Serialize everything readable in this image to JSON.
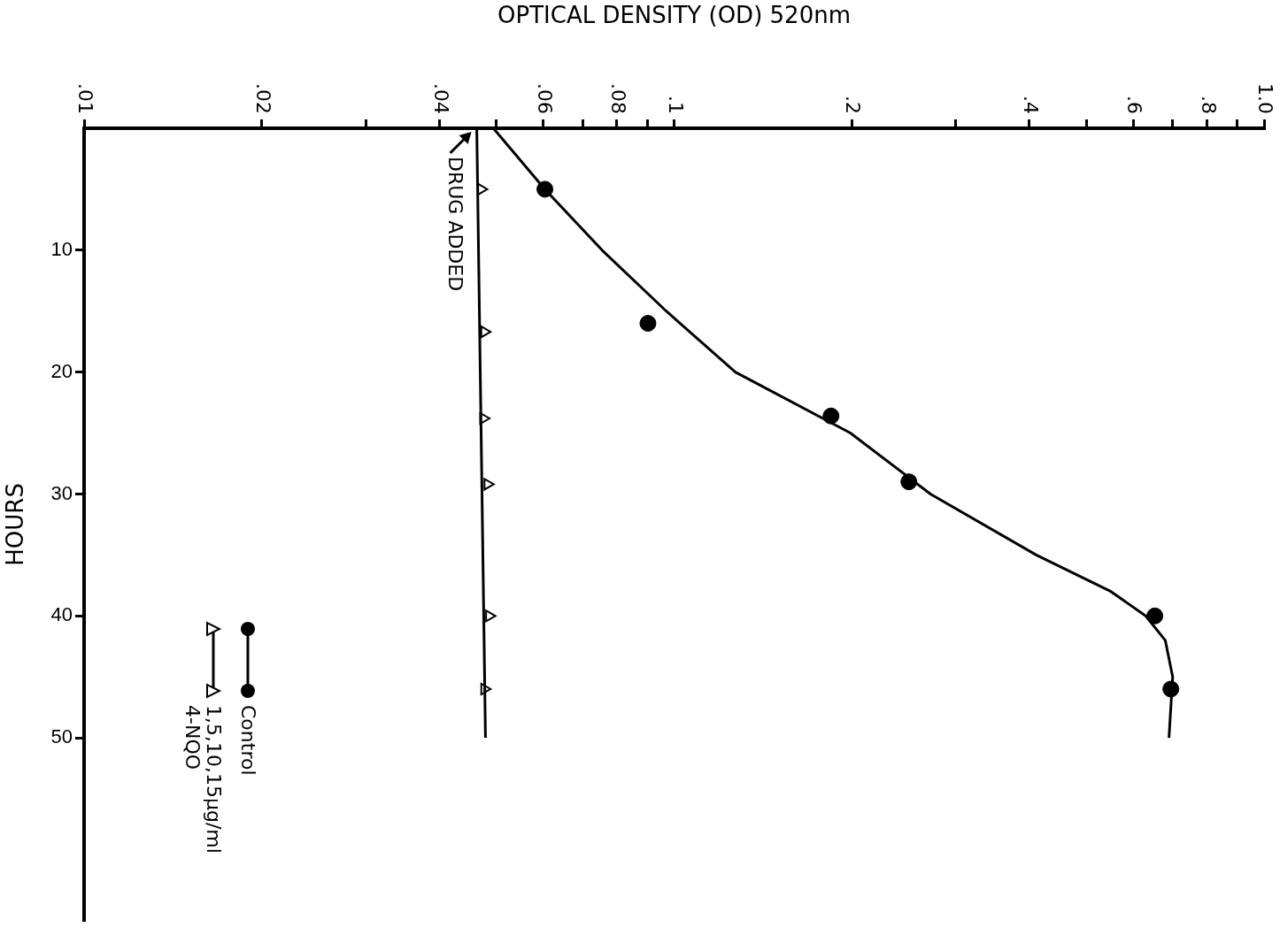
{
  "chart_data": {
    "type": "scatter",
    "xlabel": "OPTICAL DENSITY (OD) 520nm",
    "ylabel": "HOURS",
    "log": "x",
    "xlim": [
      0.01,
      1.0
    ],
    "xticks": [
      {
        "value": 0.01,
        "label": ".01"
      },
      {
        "value": 0.02,
        "label": ".02"
      },
      {
        "value": 0.03,
        "label": null
      },
      {
        "value": 0.04,
        "label": ".04"
      },
      {
        "value": 0.05,
        "label": null
      },
      {
        "value": 0.06,
        "label": ".06"
      },
      {
        "value": 0.07,
        "label": null
      },
      {
        "value": 0.08,
        "label": ".08"
      },
      {
        "value": 0.09,
        "label": null
      },
      {
        "value": 0.1,
        "label": ".1"
      },
      {
        "value": 0.2,
        "label": ".2"
      },
      {
        "value": 0.3,
        "label": null
      },
      {
        "value": 0.4,
        "label": ".4"
      },
      {
        "value": 0.5,
        "label": null
      },
      {
        "value": 0.6,
        "label": ".6"
      },
      {
        "value": 0.7,
        "label": null
      },
      {
        "value": 0.8,
        "label": ".8"
      },
      {
        "value": 0.9,
        "label": null
      },
      {
        "value": 1.0,
        "label": "1.0"
      }
    ],
    "ylim": [
      65,
      0
    ],
    "yticks": [
      10,
      20,
      30,
      40,
      50
    ],
    "legend": "bottom left",
    "series": [
      {
        "name": "Control",
        "type": "scatter",
        "marker": "circle",
        "color": "#000000",
        "x": [
          0.0604,
          0.0903,
          0.1845,
          0.25,
          0.653,
          0.695
        ],
        "values": [
          5,
          16,
          23.6,
          29,
          40,
          46
        ]
      },
      {
        "type": "line",
        "marker": "none",
        "color": "#000000",
        "x": [
          0.0494,
          0.0604,
          0.0755,
          0.097,
          0.127,
          0.199,
          0.272,
          0.411,
          0.55,
          0.63,
          0.68,
          0.7,
          0.69
        ],
        "values": [
          0,
          5,
          10,
          15,
          20,
          25,
          30,
          35,
          38,
          40,
          42,
          45,
          50
        ]
      },
      {
        "name": "1,5,10,15µg/ml 4-NQO",
        "type": "scatter",
        "marker": "triangle",
        "color": "#000000",
        "x": [
          0.0471,
          0.0477,
          0.0475,
          0.0483,
          0.0486,
          0.0477
        ],
        "values": [
          5,
          16.7,
          23.8,
          29.2,
          40,
          46
        ]
      },
      {
        "type": "line",
        "marker": "none",
        "color": "#000000",
        "x": [
          0.0463,
          0.0479
        ],
        "values": [
          0,
          50
        ]
      }
    ],
    "annotations": [
      {
        "text": "DRUG ADDED",
        "x": 0.0463,
        "y": 0
      }
    ]
  }
}
